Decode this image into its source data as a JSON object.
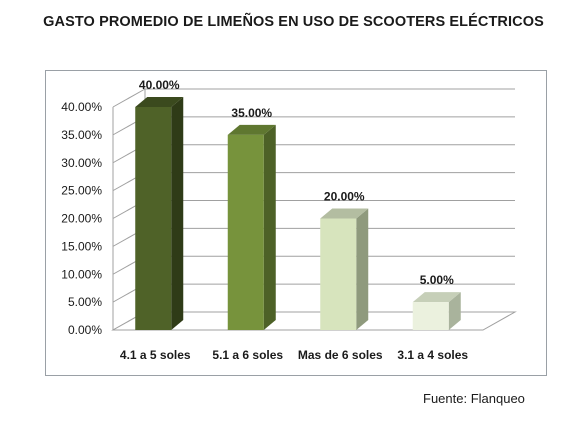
{
  "page": {
    "title": "GASTO PROMEDIO DE LIMEÑOS EN USO DE SCOOTERS ELÉCTRICOS",
    "source": "Fuente: Flanqueo"
  },
  "chart_data": {
    "type": "bar",
    "title": "GASTO PROMEDIO DE LIMEÑOS EN USO DE SCOOTERS ELÉCTRICOS",
    "categories": [
      "4.1 a 5 soles",
      "5.1 a 6 soles",
      "Mas de 6 soles",
      "3.1 a 4 soles"
    ],
    "values": [
      40,
      35,
      20,
      5
    ],
    "data_labels": [
      "40.00%",
      "35.00%",
      "20.00%",
      "5.00%"
    ],
    "y_ticks": [
      "0.00%",
      "5.00%",
      "10.00%",
      "15.00%",
      "20.00%",
      "25.00%",
      "30.00%",
      "35.00%",
      "40.00%"
    ],
    "ylim": [
      0,
      40
    ],
    "grid": true,
    "legend": "none",
    "style": "3d-column",
    "colors": {
      "bar_fronts": [
        "#4f6228",
        "#77933c",
        "#d7e4bd",
        "#ebf1de"
      ],
      "bar_sides": [
        "#2f3b17",
        "#4d6127",
        "#8f9a7d",
        "#a9b39c"
      ],
      "bar_tops": [
        "#3b4a1e",
        "#5f7730",
        "#b3bda1",
        "#c6cfb8"
      ],
      "grid": "#a0a0a0",
      "text": "#1a1a1a"
    }
  }
}
